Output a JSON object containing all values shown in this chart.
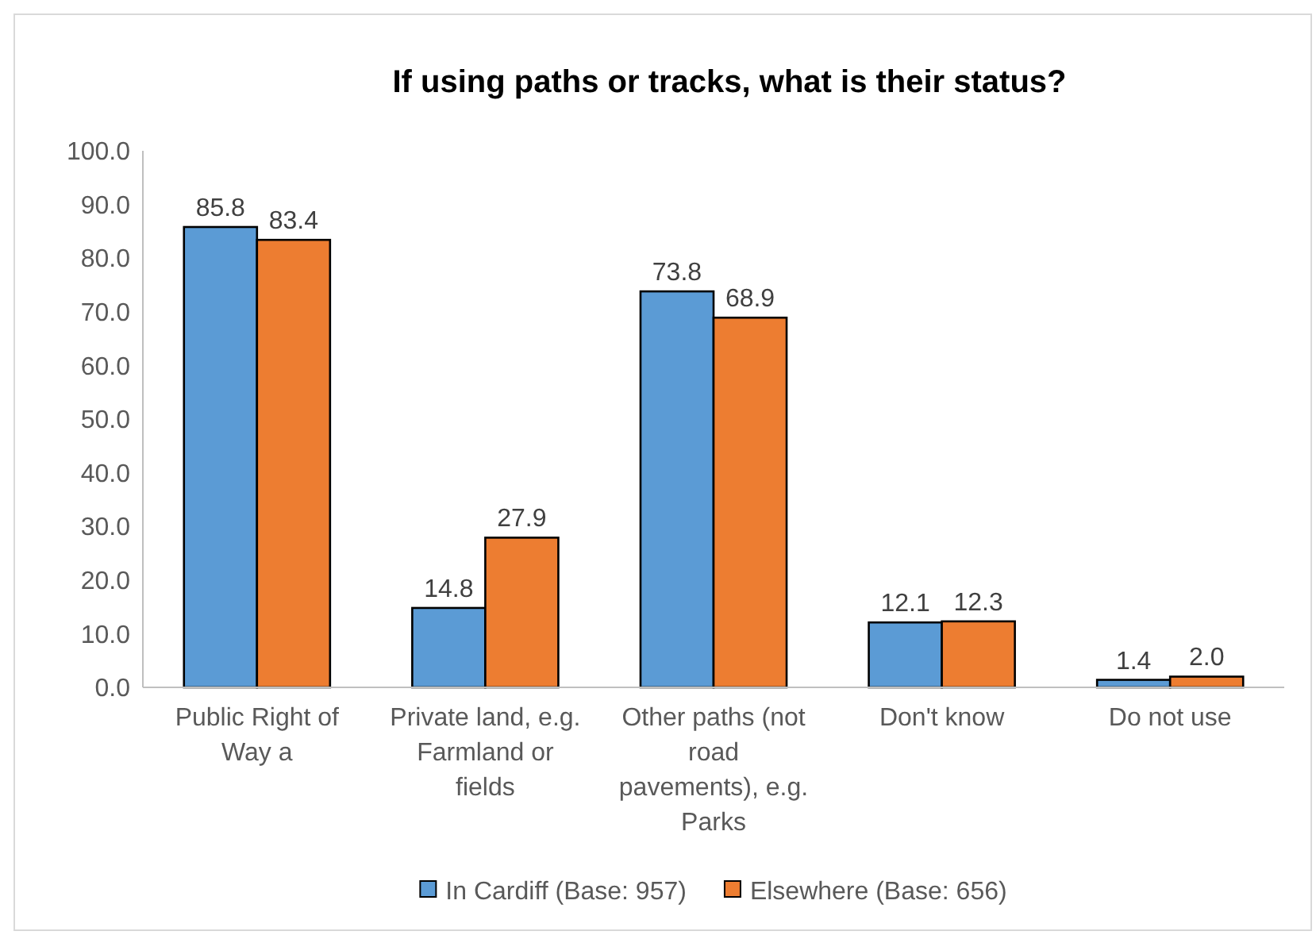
{
  "chart_data": {
    "type": "bar",
    "title": "If using paths or tracks, what is their status?",
    "categories": [
      "Public Right of Way a",
      "Private land, e.g. Farmland or fields",
      "Other paths (not road pavements), e.g. Parks",
      "Don't know",
      "Do not use"
    ],
    "series": [
      {
        "name": "In Cardiff (Base: 957)",
        "color": "#5b9bd5",
        "values": [
          85.8,
          14.8,
          73.8,
          12.1,
          1.4
        ],
        "value_labels": [
          "85.8",
          "14.8",
          "73.8",
          "12.1",
          "1.4"
        ]
      },
      {
        "name": "Elsewhere (Base: 656)",
        "color": "#ed7d31",
        "values": [
          83.4,
          27.9,
          68.9,
          12.3,
          2.0
        ],
        "value_labels": [
          "83.4",
          "27.9",
          "68.9",
          "12.3",
          "2.0"
        ]
      }
    ],
    "ylim": [
      0,
      100
    ],
    "yticks": [
      {
        "value": 0,
        "label": "0.0"
      },
      {
        "value": 10,
        "label": "10.0"
      },
      {
        "value": 20,
        "label": "20.0"
      },
      {
        "value": 30,
        "label": "30.0"
      },
      {
        "value": 40,
        "label": "40.0"
      },
      {
        "value": 50,
        "label": "50.0"
      },
      {
        "value": 60,
        "label": "60.0"
      },
      {
        "value": 70,
        "label": "70.0"
      },
      {
        "value": 80,
        "label": "80.0"
      },
      {
        "value": 90,
        "label": "90.0"
      },
      {
        "value": 100,
        "label": "100.0"
      }
    ],
    "grid": false,
    "legend": "bottom"
  }
}
